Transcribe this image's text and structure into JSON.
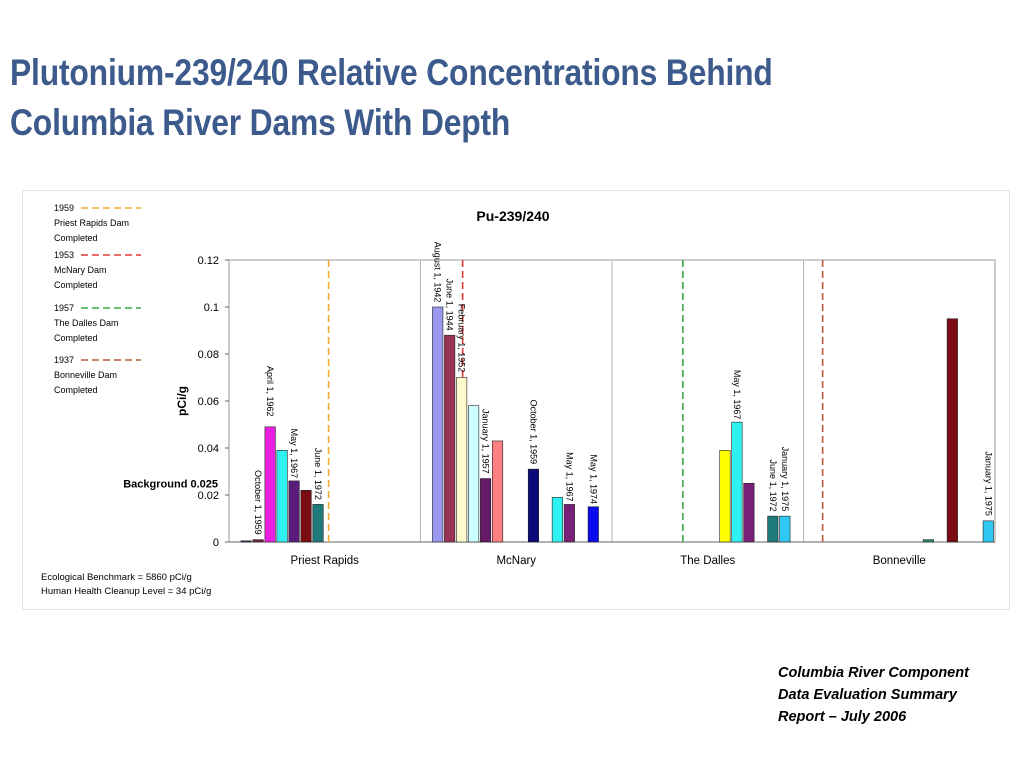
{
  "slide": {
    "title_line1": "Plutonium-239/240 Relative Concentrations Behind",
    "title_line2": "Columbia River Dams With Depth",
    "footer_line1": "Columbia River Component",
    "footer_line2": "Data Evaluation Summary",
    "footer_line3": "Report – July 2006"
  },
  "chart_data": {
    "type": "bar",
    "title": "Pu-239/240",
    "ylabel": "pCi/g",
    "xlabel": "",
    "ylim": [
      0,
      0.12
    ],
    "yticks": [
      "0",
      "0.02",
      "0.04",
      "0.06",
      "0.08",
      "0.1",
      "0.12"
    ],
    "grid": "horizontal-light",
    "categories": [
      "Priest Rapids",
      "McNary",
      "The Dalles",
      "Bonneville"
    ],
    "background": {
      "label": "Background 0.025",
      "value": 0.025
    },
    "notes": [
      "Ecological Benchmark = 5860 pCi/g",
      "Human Health Cleanup Level = 34 pCi/g"
    ],
    "legend_position": "top-left",
    "legend": [
      {
        "year": "1959",
        "line1": "Priest Rapids Dam",
        "line2": "Completed",
        "color": "#f0a830",
        "dash": "orange"
      },
      {
        "year": "1953",
        "line1": "McNary Dam",
        "line2": "Completed",
        "color": "#e03a3a",
        "dash": "red"
      },
      {
        "year": "1957",
        "line1": "The Dalles Dam",
        "line2": "Completed",
        "color": "#3aa845",
        "dash": "green"
      },
      {
        "year": "1937",
        "line1": "Bonneville Dam",
        "line2": "Completed",
        "color": "#b55a3c",
        "dash": "brown"
      }
    ],
    "dam_lines": [
      {
        "category": "Priest Rapids",
        "color": "#f0a830"
      },
      {
        "category": "McNary",
        "color": "#e03a3a"
      },
      {
        "category": "The Dalles",
        "color": "#3aa845"
      },
      {
        "category": "Bonneville",
        "color": "#b55a3c"
      }
    ],
    "bars": [
      {
        "category": "Priest Rapids",
        "slot": 0,
        "value": 0.0005,
        "color": "#2a2a66",
        "label": ""
      },
      {
        "category": "Priest Rapids",
        "slot": 1,
        "value": 0.001,
        "color": "#6a1f3a",
        "label": "October 1, 1959"
      },
      {
        "category": "Priest Rapids",
        "slot": 2,
        "value": 0.049,
        "color": "#e81fe0",
        "label": "April 1, 1962"
      },
      {
        "category": "Priest Rapids",
        "slot": 3,
        "value": 0.039,
        "color": "#2ef2f2",
        "label": ""
      },
      {
        "category": "Priest Rapids",
        "slot": 4,
        "value": 0.026,
        "color": "#5a1c7a",
        "label": "May 1, 1967"
      },
      {
        "category": "Priest Rapids",
        "slot": 5,
        "value": 0.022,
        "color": "#7a0d14",
        "label": ""
      },
      {
        "category": "Priest Rapids",
        "slot": 6,
        "value": 0.016,
        "color": "#1f7a7a",
        "label": "June 1, 1972"
      },
      {
        "category": "McNary",
        "slot": 0,
        "value": 0.1,
        "color": "#9999f0",
        "label": "August 1, 1942"
      },
      {
        "category": "McNary",
        "slot": 1,
        "value": 0.088,
        "color": "#993355",
        "label": "June 1, 1944"
      },
      {
        "category": "McNary",
        "slot": 2,
        "value": 0.07,
        "color": "#fffacc",
        "label": "February 1, 1952"
      },
      {
        "category": "McNary",
        "slot": 3,
        "value": 0.058,
        "color": "#ccffff",
        "label": ""
      },
      {
        "category": "McNary",
        "slot": 4,
        "value": 0.027,
        "color": "#661a66",
        "label": "January 1, 1957"
      },
      {
        "category": "McNary",
        "slot": 5,
        "value": 0.043,
        "color": "#ff8080",
        "label": ""
      },
      {
        "category": "McNary",
        "slot": 8,
        "value": 0.031,
        "color": "#0a0a7a",
        "label": "October 1, 1959"
      },
      {
        "category": "McNary",
        "slot": 10,
        "value": 0.019,
        "color": "#2ef2f2",
        "label": ""
      },
      {
        "category": "McNary",
        "slot": 11,
        "value": 0.016,
        "color": "#7a1f7a",
        "label": "May 1, 1967"
      },
      {
        "category": "McNary",
        "slot": 13,
        "value": 0.015,
        "color": "#0a0af0",
        "label": "May 1, 1974"
      },
      {
        "category": "The Dalles",
        "slot": 8,
        "value": 0.039,
        "color": "#ffff00",
        "label": ""
      },
      {
        "category": "The Dalles",
        "slot": 9,
        "value": 0.051,
        "color": "#2ef2f2",
        "label": "May 1, 1967"
      },
      {
        "category": "The Dalles",
        "slot": 10,
        "value": 0.025,
        "color": "#7a1f7a",
        "label": ""
      },
      {
        "category": "The Dalles",
        "slot": 12,
        "value": 0.011,
        "color": "#1f7a7a",
        "label": "June 1, 1972"
      },
      {
        "category": "The Dalles",
        "slot": 13,
        "value": 0.011,
        "color": "#2ec8f2",
        "label": "January 1, 1975"
      },
      {
        "category": "Bonneville",
        "slot": 9,
        "value": 0.001,
        "color": "#2a8a6a",
        "label": ""
      },
      {
        "category": "Bonneville",
        "slot": 11,
        "value": 0.095,
        "color": "#7a0d14",
        "label": ""
      },
      {
        "category": "Bonneville",
        "slot": 14,
        "value": 0.009,
        "color": "#2ec8f2",
        "label": "January 1, 1975"
      }
    ]
  }
}
